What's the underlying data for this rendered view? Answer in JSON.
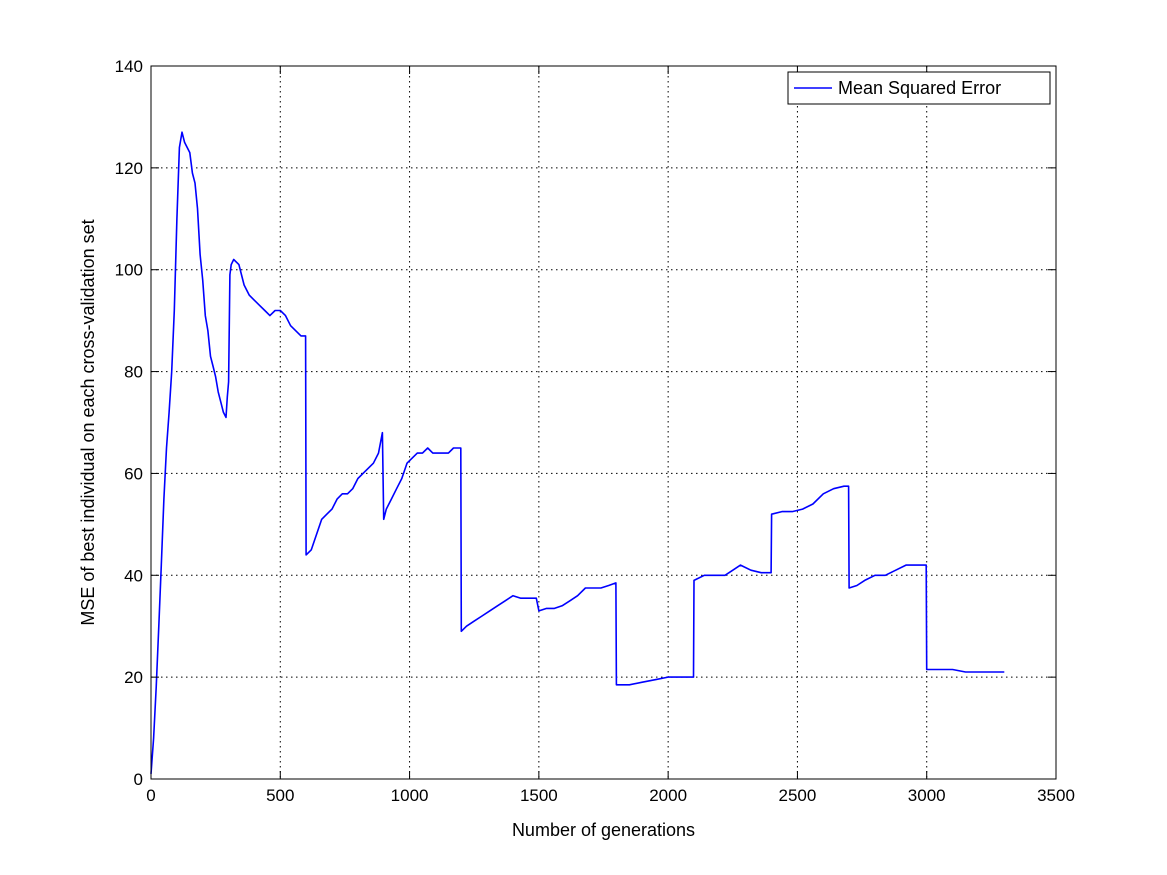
{
  "chart_data": {
    "type": "line",
    "title": "",
    "xlabel": "Number of generations",
    "ylabel": "MSE of best individual on each cross-validation set",
    "xlim": [
      0,
      3500
    ],
    "ylim": [
      0,
      140
    ],
    "xticks": [
      0,
      500,
      1000,
      1500,
      2000,
      2500,
      3000,
      3500
    ],
    "yticks": [
      0,
      20,
      40,
      60,
      80,
      100,
      120,
      140
    ],
    "xtick_labels": [
      "0",
      "500",
      "1000",
      "1500",
      "2000",
      "2500",
      "3000",
      "3500"
    ],
    "ytick_labels": [
      "0",
      "20",
      "40",
      "60",
      "80",
      "100",
      "120",
      "140"
    ],
    "grid": true,
    "legend_position": "top-right",
    "colors": {
      "series": "#0000ff",
      "grid": "#000000",
      "axis": "#000000"
    },
    "series": [
      {
        "name": "Mean Squared Error",
        "color": "#0000ff",
        "points": [
          [
            0,
            1
          ],
          [
            10,
            8
          ],
          [
            20,
            18
          ],
          [
            30,
            30
          ],
          [
            40,
            42
          ],
          [
            50,
            55
          ],
          [
            60,
            65
          ],
          [
            70,
            72
          ],
          [
            80,
            80
          ],
          [
            90,
            92
          ],
          [
            100,
            110
          ],
          [
            110,
            124
          ],
          [
            120,
            127
          ],
          [
            130,
            125
          ],
          [
            140,
            124
          ],
          [
            150,
            123
          ],
          [
            160,
            119
          ],
          [
            170,
            117
          ],
          [
            180,
            112
          ],
          [
            190,
            103
          ],
          [
            200,
            98
          ],
          [
            210,
            91
          ],
          [
            220,
            88
          ],
          [
            230,
            83
          ],
          [
            240,
            81
          ],
          [
            250,
            79
          ],
          [
            260,
            76
          ],
          [
            270,
            74
          ],
          [
            280,
            72
          ],
          [
            290,
            71
          ],
          [
            295,
            75
          ],
          [
            300,
            78
          ],
          [
            305,
            99
          ],
          [
            310,
            101
          ],
          [
            320,
            102
          ],
          [
            340,
            101
          ],
          [
            360,
            97
          ],
          [
            380,
            95
          ],
          [
            400,
            94
          ],
          [
            420,
            93
          ],
          [
            440,
            92
          ],
          [
            460,
            91
          ],
          [
            480,
            92
          ],
          [
            500,
            92
          ],
          [
            520,
            91
          ],
          [
            540,
            89
          ],
          [
            560,
            88
          ],
          [
            580,
            87
          ],
          [
            598,
            87
          ],
          [
            600,
            44
          ],
          [
            620,
            45
          ],
          [
            640,
            48
          ],
          [
            660,
            51
          ],
          [
            680,
            52
          ],
          [
            700,
            53
          ],
          [
            720,
            55
          ],
          [
            740,
            56
          ],
          [
            760,
            56
          ],
          [
            780,
            57
          ],
          [
            800,
            59
          ],
          [
            820,
            60
          ],
          [
            840,
            61
          ],
          [
            860,
            62
          ],
          [
            880,
            64
          ],
          [
            895,
            68
          ],
          [
            900,
            51
          ],
          [
            910,
            53
          ],
          [
            930,
            55
          ],
          [
            950,
            57
          ],
          [
            970,
            59
          ],
          [
            990,
            62
          ],
          [
            1010,
            63
          ],
          [
            1030,
            64
          ],
          [
            1050,
            64
          ],
          [
            1070,
            65
          ],
          [
            1090,
            64
          ],
          [
            1110,
            64
          ],
          [
            1130,
            64
          ],
          [
            1150,
            64
          ],
          [
            1170,
            65
          ],
          [
            1198,
            65
          ],
          [
            1200,
            29
          ],
          [
            1220,
            30
          ],
          [
            1250,
            31
          ],
          [
            1280,
            32
          ],
          [
            1310,
            33
          ],
          [
            1340,
            34
          ],
          [
            1370,
            35
          ],
          [
            1400,
            36
          ],
          [
            1430,
            35.5
          ],
          [
            1460,
            35.5
          ],
          [
            1490,
            35.5
          ],
          [
            1500,
            33
          ],
          [
            1530,
            33.5
          ],
          [
            1560,
            33.5
          ],
          [
            1590,
            34
          ],
          [
            1620,
            35
          ],
          [
            1650,
            36
          ],
          [
            1680,
            37.5
          ],
          [
            1710,
            37.5
          ],
          [
            1740,
            37.5
          ],
          [
            1770,
            38
          ],
          [
            1798,
            38.5
          ],
          [
            1800,
            18.5
          ],
          [
            1850,
            18.5
          ],
          [
            1900,
            19
          ],
          [
            1950,
            19.5
          ],
          [
            2000,
            20
          ],
          [
            2050,
            20
          ],
          [
            2098,
            20
          ],
          [
            2100,
            39
          ],
          [
            2140,
            40
          ],
          [
            2180,
            40
          ],
          [
            2220,
            40
          ],
          [
            2250,
            41
          ],
          [
            2280,
            42
          ],
          [
            2320,
            41
          ],
          [
            2360,
            40.5
          ],
          [
            2398,
            40.5
          ],
          [
            2400,
            52
          ],
          [
            2440,
            52.5
          ],
          [
            2480,
            52.5
          ],
          [
            2520,
            53
          ],
          [
            2560,
            54
          ],
          [
            2600,
            56
          ],
          [
            2640,
            57
          ],
          [
            2680,
            57.5
          ],
          [
            2698,
            57.5
          ],
          [
            2700,
            37.5
          ],
          [
            2730,
            38
          ],
          [
            2760,
            39
          ],
          [
            2800,
            40
          ],
          [
            2840,
            40
          ],
          [
            2880,
            41
          ],
          [
            2920,
            42
          ],
          [
            2960,
            42
          ],
          [
            2998,
            42
          ],
          [
            3000,
            21.5
          ],
          [
            3050,
            21.5
          ],
          [
            3100,
            21.5
          ],
          [
            3150,
            21
          ],
          [
            3200,
            21
          ],
          [
            3250,
            21
          ],
          [
            3300,
            21
          ]
        ]
      }
    ]
  }
}
